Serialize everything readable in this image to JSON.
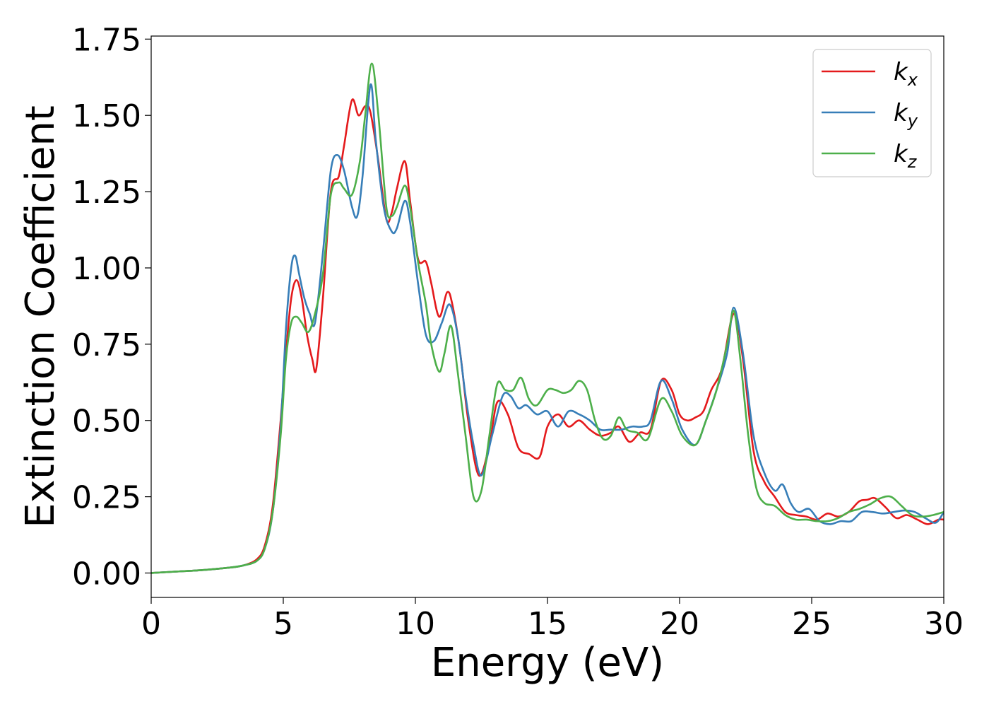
{
  "chart_data": {
    "type": "line",
    "title": "",
    "xlabel": "Energy (eV)",
    "ylabel": "Extinction Coefficient",
    "xlim": [
      0,
      30
    ],
    "ylim": [
      -0.08,
      1.76
    ],
    "xticks": [
      0,
      5,
      10,
      15,
      20,
      25,
      30
    ],
    "xtick_labels": [
      "0",
      "5",
      "10",
      "15",
      "20",
      "25",
      "30"
    ],
    "yticks": [
      0,
      0.25,
      0.5,
      0.75,
      1.0,
      1.25,
      1.5,
      1.75
    ],
    "ytick_labels": [
      "0.00",
      "0.25",
      "0.50",
      "0.75",
      "1.00",
      "1.25",
      "1.50",
      "1.75"
    ],
    "grid": false,
    "legend_position": "top-right",
    "series": [
      {
        "name": "k_x",
        "label_base": "k",
        "label_sub": "x",
        "color": "#e41a1c",
        "x": [
          0,
          1,
          2,
          3,
          3.5,
          4,
          4.3,
          4.6,
          4.9,
          5.1,
          5.3,
          5.5,
          5.7,
          5.9,
          6.1,
          6.25,
          6.5,
          6.8,
          7.1,
          7.3,
          7.6,
          7.85,
          8.1,
          8.3,
          8.6,
          8.9,
          9.1,
          9.3,
          9.6,
          9.8,
          10.1,
          10.4,
          10.6,
          10.9,
          11.2,
          11.4,
          11.7,
          12.0,
          12.4,
          12.8,
          13.1,
          13.5,
          13.9,
          14.3,
          14.7,
          15.0,
          15.4,
          15.8,
          16.2,
          16.6,
          17.0,
          17.4,
          17.7,
          18.1,
          18.5,
          18.9,
          19.3,
          19.7,
          20.0,
          20.3,
          20.6,
          20.9,
          21.2,
          21.6,
          22.05,
          22.4,
          22.8,
          23.2,
          23.6,
          24.0,
          24.4,
          24.8,
          25.2,
          25.6,
          26.0,
          26.4,
          26.8,
          27.1,
          27.4,
          27.8,
          28.2,
          28.6,
          29.0,
          29.4,
          29.8,
          30.0
        ],
        "y": [
          0.0,
          0.005,
          0.01,
          0.018,
          0.025,
          0.045,
          0.09,
          0.22,
          0.5,
          0.72,
          0.9,
          0.96,
          0.9,
          0.78,
          0.7,
          0.67,
          0.9,
          1.25,
          1.3,
          1.4,
          1.55,
          1.5,
          1.53,
          1.51,
          1.35,
          1.16,
          1.18,
          1.26,
          1.35,
          1.22,
          1.03,
          1.02,
          0.95,
          0.84,
          0.92,
          0.88,
          0.72,
          0.5,
          0.32,
          0.42,
          0.56,
          0.52,
          0.41,
          0.39,
          0.38,
          0.48,
          0.52,
          0.48,
          0.5,
          0.47,
          0.45,
          0.46,
          0.48,
          0.43,
          0.46,
          0.47,
          0.63,
          0.6,
          0.52,
          0.5,
          0.51,
          0.53,
          0.6,
          0.67,
          0.85,
          0.7,
          0.4,
          0.3,
          0.25,
          0.2,
          0.19,
          0.185,
          0.175,
          0.195,
          0.185,
          0.2,
          0.235,
          0.24,
          0.245,
          0.215,
          0.18,
          0.19,
          0.175,
          0.16,
          0.175,
          0.175
        ]
      },
      {
        "name": "k_y",
        "label_base": "k",
        "label_sub": "y",
        "color": "#377eb8",
        "x": [
          0,
          1,
          2,
          3,
          3.5,
          4,
          4.3,
          4.6,
          4.9,
          5.1,
          5.3,
          5.45,
          5.6,
          5.8,
          6.0,
          6.2,
          6.5,
          6.8,
          7.05,
          7.3,
          7.6,
          7.8,
          8.0,
          8.3,
          8.5,
          8.8,
          9.1,
          9.3,
          9.6,
          9.8,
          10.1,
          10.4,
          10.7,
          11.0,
          11.3,
          11.6,
          11.9,
          12.2,
          12.5,
          12.9,
          13.3,
          13.6,
          13.9,
          14.2,
          14.6,
          15.0,
          15.4,
          15.8,
          16.2,
          16.6,
          17.0,
          17.4,
          17.8,
          18.2,
          18.6,
          18.9,
          19.3,
          19.7,
          20.1,
          20.6,
          21.0,
          21.4,
          21.8,
          22.05,
          22.4,
          22.8,
          23.2,
          23.6,
          23.9,
          24.2,
          24.5,
          24.9,
          25.3,
          25.7,
          26.1,
          26.5,
          26.9,
          27.3,
          27.7,
          28.1,
          28.5,
          28.9,
          29.3,
          29.7,
          30.0
        ],
        "y": [
          0.0,
          0.005,
          0.01,
          0.018,
          0.025,
          0.04,
          0.08,
          0.2,
          0.48,
          0.8,
          1.0,
          1.04,
          0.98,
          0.9,
          0.85,
          0.82,
          1.05,
          1.32,
          1.37,
          1.32,
          1.2,
          1.17,
          1.3,
          1.6,
          1.42,
          1.2,
          1.12,
          1.13,
          1.22,
          1.15,
          0.95,
          0.78,
          0.76,
          0.82,
          0.88,
          0.78,
          0.58,
          0.42,
          0.32,
          0.45,
          0.58,
          0.58,
          0.54,
          0.55,
          0.52,
          0.53,
          0.48,
          0.53,
          0.52,
          0.5,
          0.47,
          0.47,
          0.47,
          0.48,
          0.48,
          0.5,
          0.63,
          0.57,
          0.47,
          0.42,
          0.5,
          0.6,
          0.72,
          0.87,
          0.72,
          0.45,
          0.33,
          0.27,
          0.29,
          0.23,
          0.2,
          0.21,
          0.17,
          0.16,
          0.17,
          0.17,
          0.2,
          0.2,
          0.195,
          0.2,
          0.205,
          0.2,
          0.18,
          0.165,
          0.2
        ],
        "note_x_ignore": null
      },
      {
        "name": "k_z",
        "label_base": "k",
        "label_sub": "z",
        "color": "#4daf4a",
        "x": [
          0,
          1,
          2,
          3,
          3.5,
          4,
          4.3,
          4.6,
          4.9,
          5.1,
          5.3,
          5.5,
          5.7,
          5.95,
          6.2,
          6.5,
          6.8,
          7.1,
          7.3,
          7.6,
          7.9,
          8.1,
          8.35,
          8.6,
          8.9,
          9.1,
          9.3,
          9.6,
          9.8,
          10.1,
          10.4,
          10.6,
          10.9,
          11.1,
          11.35,
          11.6,
          11.9,
          12.2,
          12.5,
          12.8,
          13.1,
          13.4,
          13.7,
          14.0,
          14.3,
          14.6,
          15.0,
          15.3,
          15.6,
          15.9,
          16.2,
          16.5,
          16.8,
          17.1,
          17.4,
          17.7,
          18.0,
          18.4,
          18.8,
          19.3,
          19.7,
          20.1,
          20.6,
          21.0,
          21.4,
          21.8,
          22.05,
          22.3,
          22.6,
          22.9,
          23.2,
          23.6,
          24.0,
          24.4,
          24.8,
          25.2,
          25.6,
          26.0,
          26.4,
          26.8,
          27.2,
          27.6,
          28.0,
          28.4,
          28.8,
          29.2,
          29.6,
          30.0
        ],
        "y": [
          0.0,
          0.005,
          0.01,
          0.018,
          0.025,
          0.04,
          0.08,
          0.2,
          0.45,
          0.7,
          0.82,
          0.84,
          0.82,
          0.79,
          0.85,
          0.98,
          1.24,
          1.28,
          1.26,
          1.24,
          1.35,
          1.5,
          1.67,
          1.5,
          1.2,
          1.17,
          1.2,
          1.27,
          1.2,
          1.02,
          0.88,
          0.75,
          0.66,
          0.72,
          0.81,
          0.66,
          0.45,
          0.25,
          0.27,
          0.45,
          0.62,
          0.6,
          0.6,
          0.64,
          0.57,
          0.55,
          0.6,
          0.6,
          0.59,
          0.6,
          0.63,
          0.6,
          0.5,
          0.44,
          0.45,
          0.51,
          0.47,
          0.46,
          0.44,
          0.57,
          0.53,
          0.45,
          0.42,
          0.5,
          0.6,
          0.75,
          0.86,
          0.7,
          0.45,
          0.28,
          0.23,
          0.22,
          0.19,
          0.175,
          0.175,
          0.17,
          0.17,
          0.18,
          0.2,
          0.21,
          0.225,
          0.245,
          0.25,
          0.22,
          0.19,
          0.185,
          0.19,
          0.2
        ]
      }
    ]
  }
}
